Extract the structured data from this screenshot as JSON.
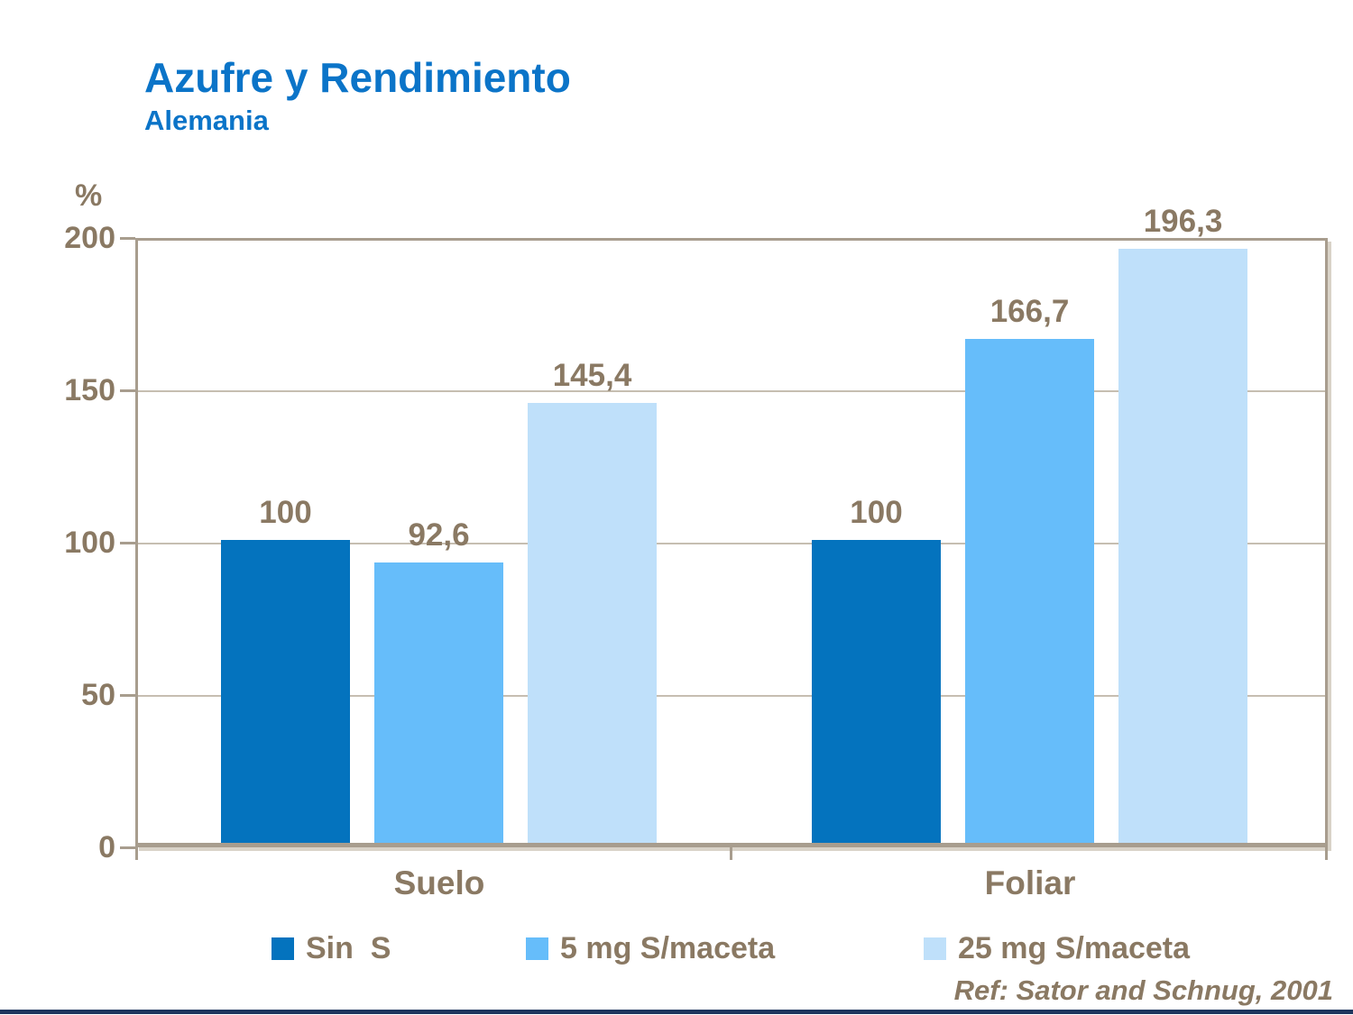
{
  "slide": {
    "title": "Azufre y Rendimiento",
    "subtitle": "Alemania",
    "reference": "Ref: Sator and Schnug, 2001"
  },
  "chart_data": {
    "type": "bar",
    "title": "Azufre y Rendimiento",
    "subtitle": "Alemania",
    "ylabel": "%",
    "xlabel": "",
    "ylim": [
      0,
      200
    ],
    "yticks": [
      0,
      50,
      100,
      150,
      200
    ],
    "grid": true,
    "legend_position": "bottom",
    "categories": [
      "Suelo",
      "Foliar"
    ],
    "series": [
      {
        "name": "Sin  S",
        "color": "#0473BE",
        "values": [
          100,
          100
        ],
        "value_labels": [
          "100",
          "100"
        ]
      },
      {
        "name": "5 mg S/maceta",
        "color": "#66BDFA",
        "values": [
          92.6,
          166.7
        ],
        "value_labels": [
          "92,6",
          "166,7"
        ]
      },
      {
        "name": "25 mg S/maceta",
        "color": "#BFE0FA",
        "values": [
          145.4,
          196.3
        ],
        "value_labels": [
          "145,4",
          "196,3"
        ]
      }
    ],
    "annotation": "Ref: Sator and Schnug, 2001",
    "colors": {
      "title_blue": "#0B74C8",
      "text_brown": "#8A7963",
      "axis_frame_tan": "#A89D8E",
      "gridline_tan": "#C6BEB1",
      "bottom_line_navy": "#1E355E"
    }
  }
}
